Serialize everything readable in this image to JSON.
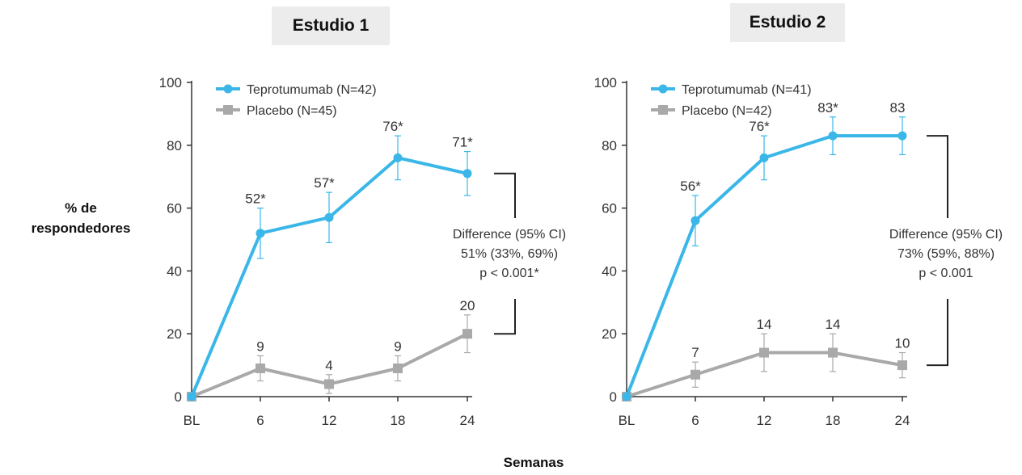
{
  "y_axis_title": {
    "line1": "% de",
    "line2": "respondedores"
  },
  "x_axis_title": "Semanas",
  "colors": {
    "teprotumumab": "#3ab7e8",
    "placebo": "#a9a9a9",
    "axis": "#333333",
    "bracket": "#222222"
  },
  "chart_data": [
    {
      "type": "line",
      "title": "Estudio 1",
      "categories": [
        "BL",
        "6",
        "12",
        "18",
        "24"
      ],
      "ylim": [
        0,
        100
      ],
      "yticks": [
        0,
        20,
        40,
        60,
        80,
        100
      ],
      "grid": false,
      "legend_position": "top-left",
      "series": [
        {
          "name": "Teprotumumab (N=42)",
          "values": [
            0,
            52,
            57,
            76,
            71
          ],
          "labels": [
            "",
            "52*",
            "57*",
            "76*",
            "71*"
          ],
          "err": [
            0,
            8,
            8,
            7,
            7
          ],
          "marker": "circle"
        },
        {
          "name": "Placebo (N=45)",
          "values": [
            0,
            9,
            4,
            9,
            20
          ],
          "labels": [
            "",
            "9",
            "4",
            "9",
            "20"
          ],
          "err": [
            0,
            4,
            3,
            4,
            6
          ],
          "marker": "square"
        }
      ],
      "annotation": {
        "lines": [
          "Difference (95% CI)",
          "51% (33%, 69%)",
          "p < 0.001*"
        ],
        "from": 20,
        "to": 71
      }
    },
    {
      "type": "line",
      "title": "Estudio 2",
      "categories": [
        "BL",
        "6",
        "12",
        "18",
        "24"
      ],
      "ylim": [
        0,
        100
      ],
      "yticks": [
        0,
        20,
        40,
        60,
        80,
        100
      ],
      "grid": false,
      "legend_position": "top-left",
      "series": [
        {
          "name": "Teprotumumab (N=41)",
          "values": [
            0,
            56,
            76,
            83,
            83
          ],
          "labels": [
            "",
            "56*",
            "76*",
            "83*",
            "83"
          ],
          "err": [
            0,
            8,
            7,
            6,
            6
          ],
          "marker": "circle"
        },
        {
          "name": "Placebo (N=42)",
          "values": [
            0,
            7,
            14,
            14,
            10
          ],
          "labels": [
            "",
            "7",
            "14",
            "14",
            "10"
          ],
          "err": [
            0,
            4,
            6,
            6,
            4
          ],
          "marker": "square"
        }
      ],
      "annotation": {
        "lines": [
          "Difference (95% CI)",
          "73% (59%, 88%)",
          "p < 0.001"
        ],
        "from": 10,
        "to": 83
      }
    }
  ]
}
